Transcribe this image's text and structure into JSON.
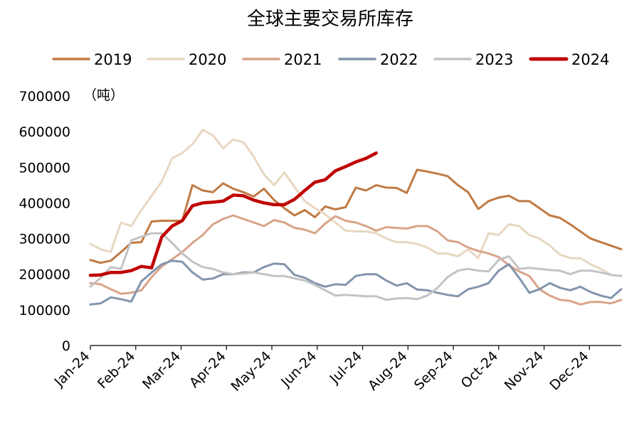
{
  "chart_data": {
    "type": "line",
    "title": "全球主要交易所库存",
    "unit_label": "（吨）",
    "xlabel": "",
    "ylabel": "",
    "ylim": [
      0,
      700000
    ],
    "y_ticks": [
      0,
      100000,
      200000,
      300000,
      400000,
      500000,
      600000,
      700000
    ],
    "y_tick_labels": [
      "0",
      "100000",
      "200000",
      "300000",
      "400000",
      "500000",
      "600000",
      "700000"
    ],
    "x_tick_labels": [
      "Jan-24",
      "Feb-24",
      "Mar-24",
      "Apr-24",
      "May-24",
      "Jun-24",
      "Jul-24",
      "Aug-24",
      "Sep-24",
      "Oct-24",
      "Nov-24",
      "Dec-24"
    ],
    "x_unit": "week index (0 = Jan-24, ~4.3 weeks per month)",
    "legend_position": "top",
    "grid": false,
    "series": [
      {
        "name": "2019",
        "color": "#C07A43",
        "values": [
          240000,
          232000,
          238000,
          262000,
          288000,
          290000,
          348000,
          350000,
          350000,
          350000,
          450000,
          435000,
          430000,
          455000,
          440000,
          430000,
          418000,
          440000,
          408000,
          385000,
          365000,
          380000,
          360000,
          390000,
          382000,
          388000,
          443000,
          435000,
          450000,
          443000,
          442000,
          428000,
          493000,
          488000,
          482000,
          475000,
          450000,
          430000,
          383000,
          405000,
          415000,
          420000,
          405000,
          405000,
          385000,
          365000,
          358000,
          340000,
          320000,
          300000,
          290000,
          280000,
          270000
        ]
      },
      {
        "name": "2020",
        "color": "#E8D7C2",
        "values": [
          285000,
          270000,
          262000,
          345000,
          335000,
          380000,
          420000,
          460000,
          525000,
          540000,
          565000,
          605000,
          590000,
          553000,
          578000,
          570000,
          530000,
          480000,
          450000,
          485000,
          445000,
          405000,
          385000,
          368000,
          345000,
          322000,
          320000,
          320000,
          315000,
          300000,
          290000,
          290000,
          285000,
          275000,
          258000,
          258000,
          250000,
          270000,
          245000,
          315000,
          310000,
          340000,
          335000,
          310000,
          300000,
          280000,
          255000,
          245000,
          245000,
          228000,
          215000,
          198000,
          195000
        ]
      },
      {
        "name": "2021",
        "color": "#D9A488",
        "values": [
          175000,
          172000,
          158000,
          145000,
          148000,
          155000,
          192000,
          222000,
          242000,
          262000,
          288000,
          310000,
          340000,
          355000,
          365000,
          355000,
          345000,
          335000,
          352000,
          345000,
          330000,
          325000,
          315000,
          342000,
          363000,
          350000,
          345000,
          335000,
          322000,
          332000,
          330000,
          328000,
          335000,
          335000,
          320000,
          295000,
          290000,
          275000,
          265000,
          258000,
          248000,
          225000,
          208000,
          195000,
          158000,
          140000,
          128000,
          125000,
          115000,
          122000,
          122000,
          118000,
          128000
        ]
      },
      {
        "name": "2022",
        "color": "#8395AC",
        "values": [
          115000,
          118000,
          135000,
          130000,
          123000,
          180000,
          205000,
          228000,
          238000,
          235000,
          205000,
          185000,
          188000,
          200000,
          200000,
          205000,
          205000,
          220000,
          230000,
          228000,
          198000,
          190000,
          175000,
          165000,
          172000,
          170000,
          195000,
          200000,
          200000,
          182000,
          168000,
          175000,
          157000,
          155000,
          148000,
          142000,
          138000,
          158000,
          165000,
          175000,
          210000,
          228000,
          190000,
          148000,
          158000,
          175000,
          162000,
          155000,
          165000,
          150000,
          140000,
          133000,
          158000
        ]
      },
      {
        "name": "2023",
        "color": "#C3C3C3",
        "values": [
          165000,
          190000,
          220000,
          215000,
          295000,
          305000,
          315000,
          315000,
          288000,
          258000,
          235000,
          220000,
          215000,
          205000,
          200000,
          202000,
          205000,
          200000,
          195000,
          195000,
          188000,
          182000,
          170000,
          155000,
          140000,
          142000,
          140000,
          138000,
          138000,
          128000,
          132000,
          133000,
          130000,
          140000,
          162000,
          192000,
          210000,
          215000,
          210000,
          208000,
          240000,
          250000,
          215000,
          218000,
          215000,
          212000,
          210000,
          200000,
          210000,
          210000,
          205000,
          198000,
          195000
        ]
      },
      {
        "name": "2024",
        "color": "#C00000",
        "values": [
          197000,
          198000,
          205000,
          205000,
          210000,
          222000,
          218000,
          305000,
          335000,
          350000,
          392000,
          400000,
          402000,
          405000,
          422000,
          420000,
          408000,
          400000,
          395000,
          395000,
          410000,
          435000,
          458000,
          465000,
          490000,
          502000,
          515000,
          525000,
          540000
        ]
      }
    ]
  }
}
